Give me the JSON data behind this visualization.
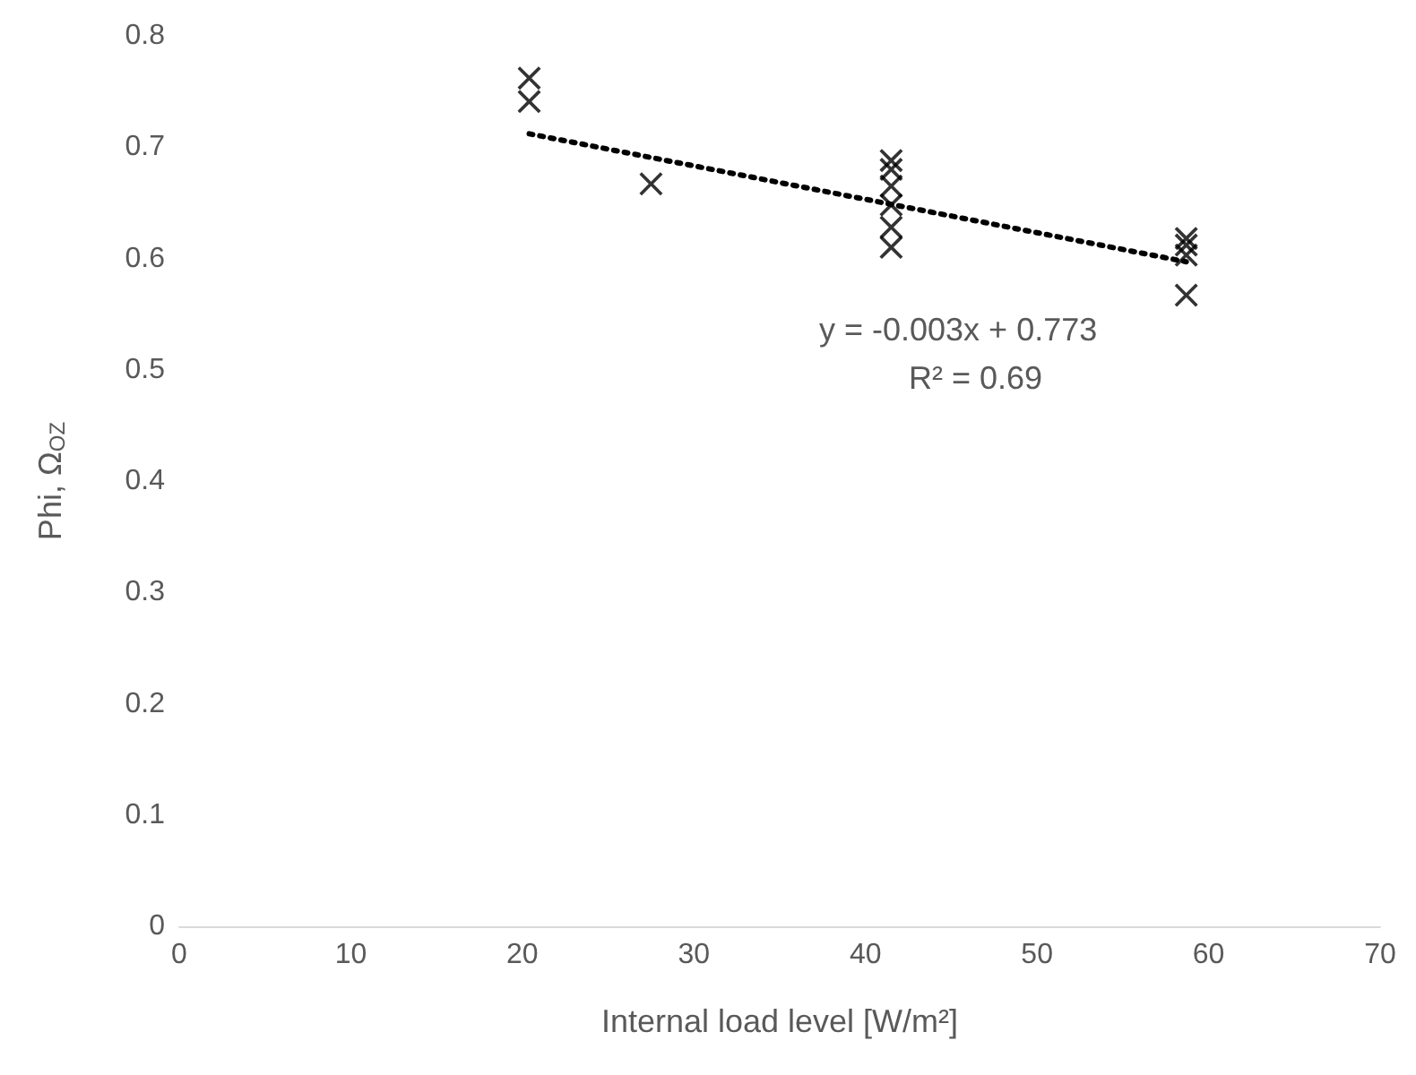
{
  "chart_data": {
    "type": "scatter",
    "xlabel": "Internal load level [W/m²]",
    "ylabel": "Phi, Ω$_{OZ}$",
    "xlim": [
      0,
      70
    ],
    "xticks": [
      0,
      10,
      20,
      30,
      40,
      50,
      60,
      70
    ],
    "ylim": [
      0,
      0.8
    ],
    "yticks": [
      0,
      0.1,
      0.2,
      0.3,
      0.4,
      0.5,
      0.6,
      0.7,
      0.8
    ],
    "grid": false,
    "marker": "cross",
    "series": [
      {
        "color": "#000000",
        "x": [
          20.4,
          20.4,
          27.5,
          41.5,
          41.5,
          41.5,
          41.5,
          41.5,
          41.5,
          58.7,
          58.7,
          58.7,
          58.7
        ],
        "values": [
          0.762,
          0.741,
          0.667,
          0.688,
          0.68,
          0.665,
          0.648,
          0.628,
          0.61,
          0.618,
          0.612,
          0.603,
          0.567
        ]
      },
      {
        "type": "line",
        "color": "#000000",
        "line_style": "dotted",
        "marker": "none",
        "x": [
          20.4,
          58.7
        ],
        "values": [
          0.712,
          0.597
        ]
      }
    ],
    "annotations": [
      "y = -0.003x + 0.773",
      "R² = 0.69"
    ]
  }
}
